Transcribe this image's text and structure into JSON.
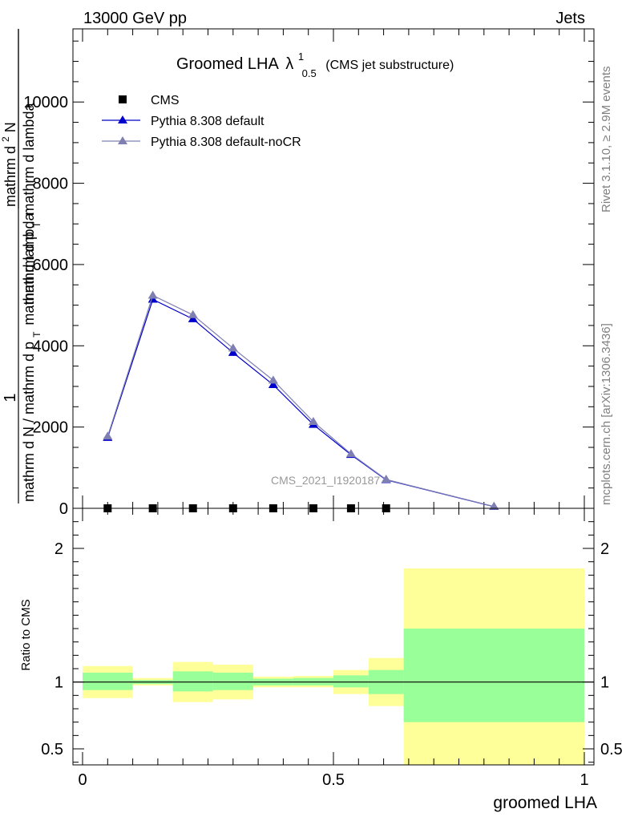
{
  "header": {
    "left": "13000 GeV pp",
    "right": "Jets"
  },
  "side_labels": {
    "rivet": "Rivet 3.1.10, ≥ 2.9M events",
    "mcplots": "mcplots.cern.ch [arXiv:1306.3436]"
  },
  "chart_data": [
    {
      "type": "line",
      "title_main": "Groomed LHA",
      "title_symbol": "λ",
      "title_sup": "1",
      "title_sub": "0.5",
      "title_suffix": "(CMS jet substructure)",
      "watermark": "CMS_2021_I1920187",
      "ylabel_num": "1",
      "ylabel_den": "mathrm d N / mathrm d p",
      "ylabel_den_sub": "T",
      "ylabel_den_tail": "mathrm d lambda",
      "ylabel_top_num": "mathrm d",
      "ylabel_top_sup": "2",
      "ylabel_top_N": "N",
      "ylabel_top_den": "mathrm d p",
      "ylabel_top_den_sub": "T",
      "ylabel_top_den_tail": "mathrm d lambda",
      "xlim": [
        0,
        1
      ],
      "ylim": [
        0,
        11800
      ],
      "yticks": [
        0,
        2000,
        4000,
        6000,
        8000,
        10000
      ],
      "ytick_labels": [
        "0",
        "2000",
        "4000",
        "6000",
        "8000",
        "10000"
      ],
      "legend": {
        "placement": "top-left",
        "entries": [
          "CMS",
          "Pythia 8.308 default",
          "Pythia 8.308 default-noCR"
        ]
      },
      "series": [
        {
          "name": "CMS",
          "marker": "square",
          "color": "#000000",
          "x": [
            0.05,
            0.14,
            0.22,
            0.3,
            0.38,
            0.46,
            0.535,
            0.605
          ],
          "y": [
            0,
            0,
            0,
            0,
            0,
            0,
            0,
            0
          ]
        },
        {
          "name": "Pythia 8.308 default",
          "marker": "triangle",
          "color": "#0000cc",
          "x": [
            0.05,
            0.14,
            0.22,
            0.3,
            0.38,
            0.46,
            0.535,
            0.605,
            0.82
          ],
          "y": [
            1740,
            5140,
            4660,
            3830,
            3040,
            2060,
            1320,
            700,
            40
          ]
        },
        {
          "name": "Pythia 8.308 default-noCR",
          "marker": "triangle",
          "color": "#7f7fb2",
          "x": [
            0.05,
            0.14,
            0.22,
            0.3,
            0.38,
            0.46,
            0.535,
            0.605,
            0.82
          ],
          "y": [
            1770,
            5240,
            4760,
            3940,
            3150,
            2130,
            1340,
            710,
            45
          ]
        }
      ]
    },
    {
      "type": "area",
      "ylabel": "Ratio to CMS",
      "xlabel": "groomed LHA",
      "xlim": [
        0,
        1
      ],
      "ylim": [
        0.38,
        2.3
      ],
      "yticks": [
        0.5,
        1,
        2
      ],
      "ytick_labels": [
        "0.5",
        "1",
        "2"
      ],
      "xticks": [
        0,
        0.5,
        1
      ],
      "xtick_labels": [
        "0",
        "0.5",
        "1"
      ],
      "reference_line": 1,
      "colors": {
        "stat": "#99ff99",
        "total": "#ffff99"
      },
      "bands": [
        {
          "x0": 0.0,
          "x1": 0.1,
          "stat": [
            0.94,
            1.07
          ],
          "total": [
            0.88,
            1.12
          ]
        },
        {
          "x0": 0.1,
          "x1": 0.18,
          "stat": [
            0.985,
            1.015
          ],
          "total": [
            0.975,
            1.03
          ]
        },
        {
          "x0": 0.18,
          "x1": 0.26,
          "stat": [
            0.93,
            1.08
          ],
          "total": [
            0.85,
            1.15
          ]
        },
        {
          "x0": 0.26,
          "x1": 0.34,
          "stat": [
            0.94,
            1.07
          ],
          "total": [
            0.87,
            1.13
          ]
        },
        {
          "x0": 0.34,
          "x1": 0.42,
          "stat": [
            0.975,
            1.025
          ],
          "total": [
            0.96,
            1.04
          ]
        },
        {
          "x0": 0.42,
          "x1": 0.5,
          "stat": [
            0.975,
            1.03
          ],
          "total": [
            0.96,
            1.045
          ]
        },
        {
          "x0": 0.5,
          "x1": 0.57,
          "stat": [
            0.96,
            1.05
          ],
          "total": [
            0.91,
            1.09
          ]
        },
        {
          "x0": 0.57,
          "x1": 0.64,
          "stat": [
            0.91,
            1.09
          ],
          "total": [
            0.82,
            1.18
          ]
        },
        {
          "x0": 0.64,
          "x1": 1.0,
          "stat": [
            0.7,
            1.4
          ],
          "total": [
            0.38,
            1.85
          ]
        }
      ]
    }
  ]
}
